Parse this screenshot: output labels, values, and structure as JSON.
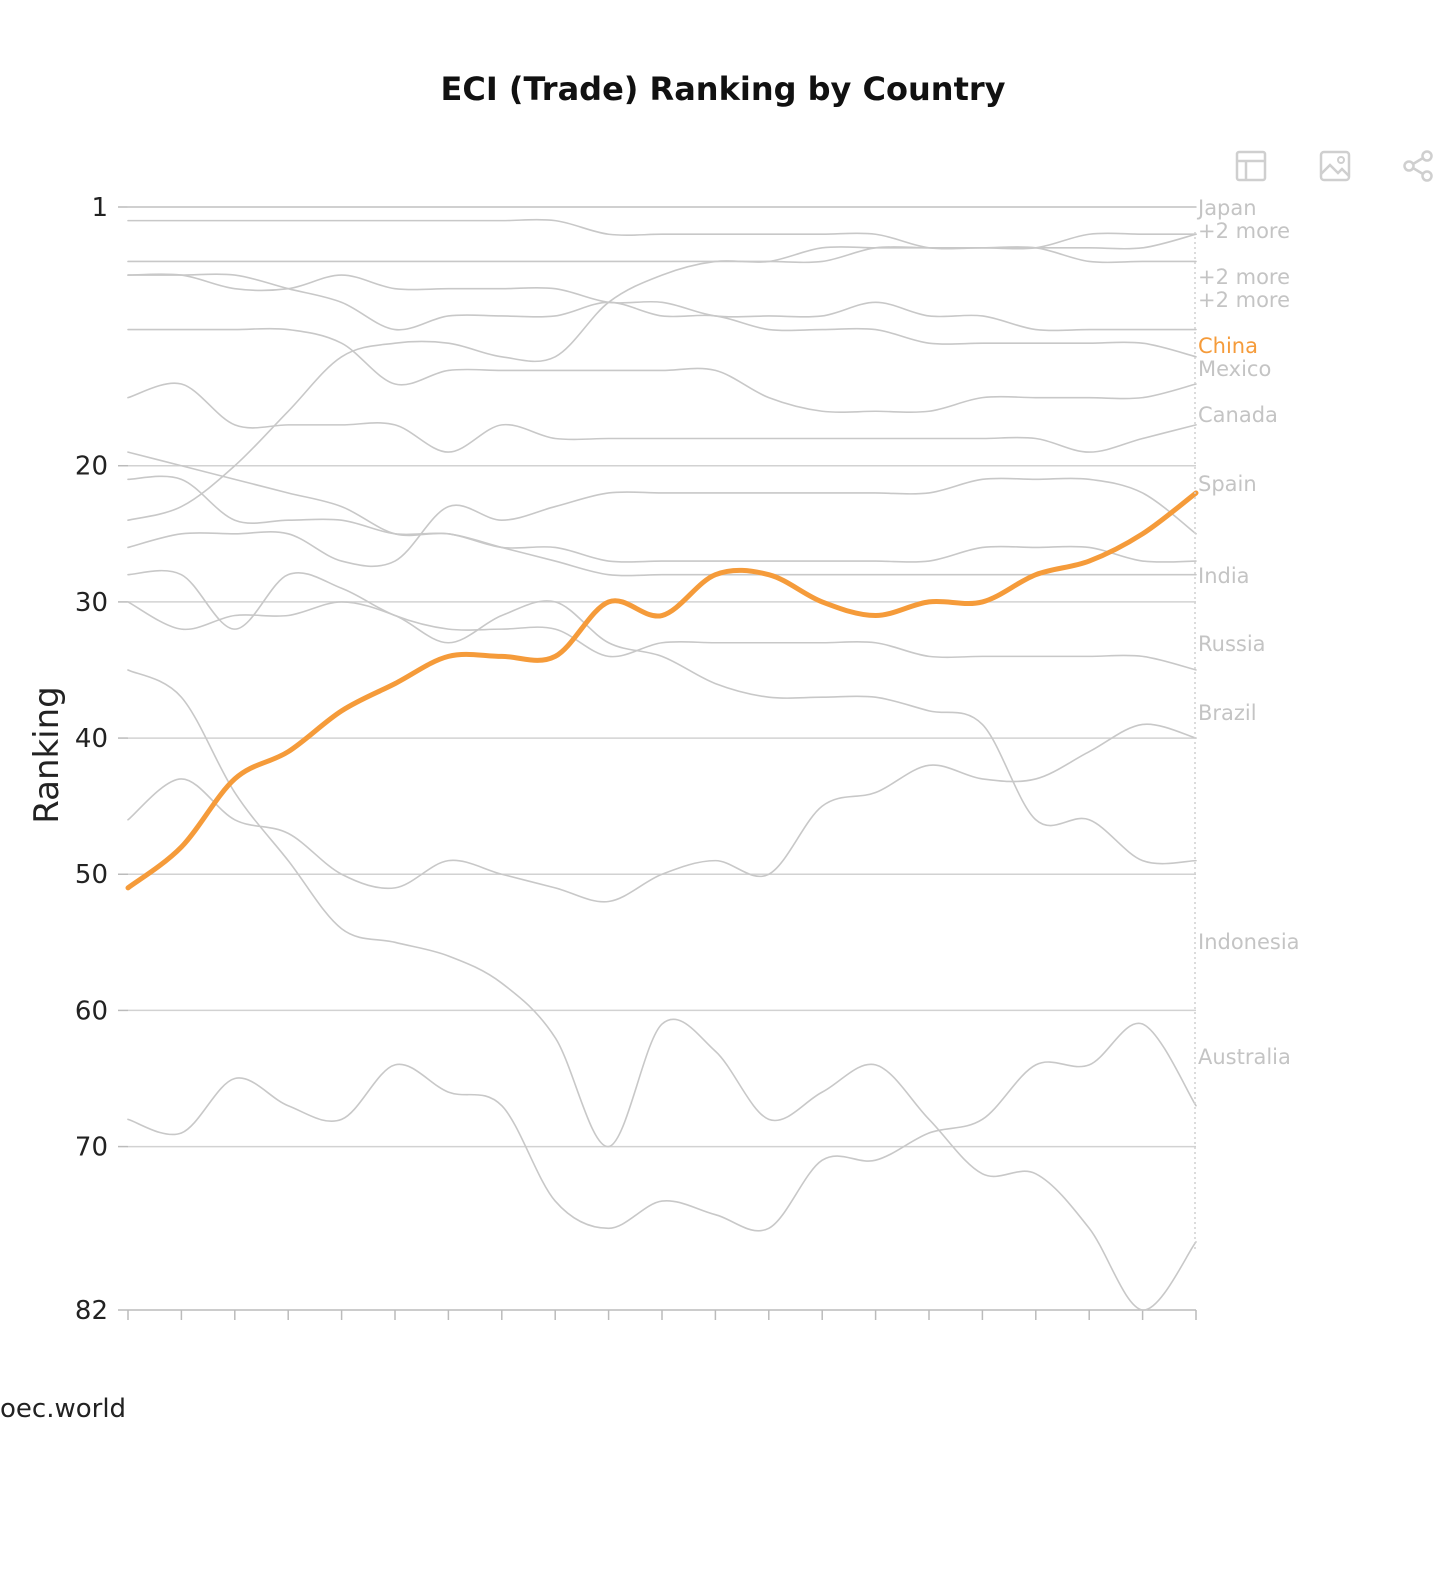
{
  "chart_data": {
    "type": "line",
    "title": "ECI (Trade) Ranking by Country",
    "ylabel": "Ranking",
    "xlabel": "",
    "ylim": [
      82,
      1
    ],
    "y_ticks": [
      1,
      20,
      30,
      40,
      50,
      60,
      70,
      82
    ],
    "highlight_color": "#f59b3a",
    "muted_color": "#c8c8c8",
    "highlight": "China",
    "end_labels": [
      "Japan",
      "+2 more",
      "+2 more",
      "+2 more",
      "China",
      "Mexico",
      "Canada",
      "Spain",
      "India",
      "Russia",
      "Brazil",
      "Indonesia",
      "Australia"
    ],
    "series": [
      {
        "name": "Japan",
        "values": [
          1,
          1,
          1,
          1,
          1,
          1,
          1,
          1,
          1,
          1,
          1,
          1,
          1,
          1,
          1,
          1,
          1,
          1,
          1,
          1,
          1
        ]
      },
      {
        "values": [
          2,
          2,
          2,
          2,
          2,
          2,
          2,
          2,
          2,
          3,
          3,
          3,
          3,
          3,
          3,
          4,
          4,
          4,
          5,
          5,
          5
        ]
      },
      {
        "values": [
          5,
          5,
          5,
          5,
          5,
          5,
          5,
          5,
          5,
          5,
          5,
          5,
          5,
          5,
          4,
          4,
          4,
          4,
          4,
          4,
          3
        ]
      },
      {
        "values": [
          6,
          6,
          7,
          7,
          6,
          7,
          7,
          7,
          7,
          8,
          8,
          9,
          9,
          9,
          8,
          9,
          9,
          10,
          10,
          10,
          10
        ]
      },
      {
        "values": [
          10,
          10,
          10,
          10,
          11,
          14,
          13,
          13,
          13,
          13,
          13,
          13,
          15,
          16,
          16,
          16,
          15,
          15,
          15,
          15,
          14
        ]
      },
      {
        "values": [
          6,
          6,
          6,
          7,
          8,
          10,
          9,
          9,
          9,
          8,
          9,
          9,
          10,
          10,
          10,
          11,
          11,
          11,
          11,
          11,
          12
        ]
      },
      {
        "values": [
          24,
          23,
          20,
          16,
          12,
          11,
          11,
          12,
          12,
          8,
          6,
          5,
          5,
          4,
          4,
          4,
          4,
          4,
          3,
          3,
          3
        ]
      },
      {
        "values": [
          15,
          14,
          17,
          17,
          17,
          17,
          19,
          17,
          18,
          18,
          18,
          18,
          18,
          18,
          18,
          18,
          18,
          18,
          19,
          18,
          17
        ]
      },
      {
        "values": [
          19,
          20,
          21,
          22,
          23,
          25,
          25,
          26,
          26,
          27,
          27,
          27,
          27,
          27,
          27,
          27,
          26,
          26,
          26,
          27,
          27
        ]
      },
      {
        "values": [
          21,
          21,
          24,
          24,
          24,
          25,
          25,
          26,
          27,
          28,
          28,
          28,
          28,
          28,
          28,
          28,
          28,
          28,
          28,
          28,
          28
        ]
      },
      {
        "values": [
          26,
          25,
          25,
          25,
          27,
          27,
          23,
          24,
          23,
          22,
          22,
          22,
          22,
          22,
          22,
          22,
          21,
          21,
          21,
          22,
          25
        ]
      },
      {
        "values": [
          28,
          28,
          32,
          28,
          29,
          31,
          32,
          32,
          32,
          34,
          33,
          33,
          33,
          33,
          33,
          34,
          34,
          34,
          34,
          34,
          35
        ]
      },
      {
        "values": [
          30,
          32,
          31,
          31,
          30,
          31,
          33,
          31,
          30,
          33,
          34,
          36,
          37,
          37,
          37,
          38,
          39,
          46,
          46,
          49,
          49
        ]
      },
      {
        "name": "China",
        "values": [
          51,
          48,
          43,
          41,
          38,
          36,
          34,
          34,
          34,
          30,
          31,
          28,
          28,
          30,
          31,
          30,
          30,
          28,
          27,
          25,
          22
        ]
      },
      {
        "values": [
          46,
          43,
          46,
          47,
          50,
          51,
          49,
          50,
          51,
          52,
          50,
          49,
          50,
          45,
          44,
          42,
          43,
          43,
          41,
          39,
          40
        ]
      },
      {
        "values": [
          35,
          37,
          44,
          49,
          54,
          55,
          56,
          58,
          62,
          70,
          61,
          63,
          68,
          66,
          64,
          68,
          72,
          72,
          76,
          82,
          77
        ]
      },
      {
        "values": [
          68,
          69,
          65,
          67,
          68,
          64,
          66,
          67,
          74,
          76,
          74,
          75,
          76,
          71,
          71,
          69,
          68,
          64,
          64,
          61,
          67
        ]
      }
    ]
  },
  "toolbar": {
    "table_icon": "table-icon",
    "image_icon": "image-icon",
    "share_icon": "share-icon"
  },
  "source": "oec.world"
}
